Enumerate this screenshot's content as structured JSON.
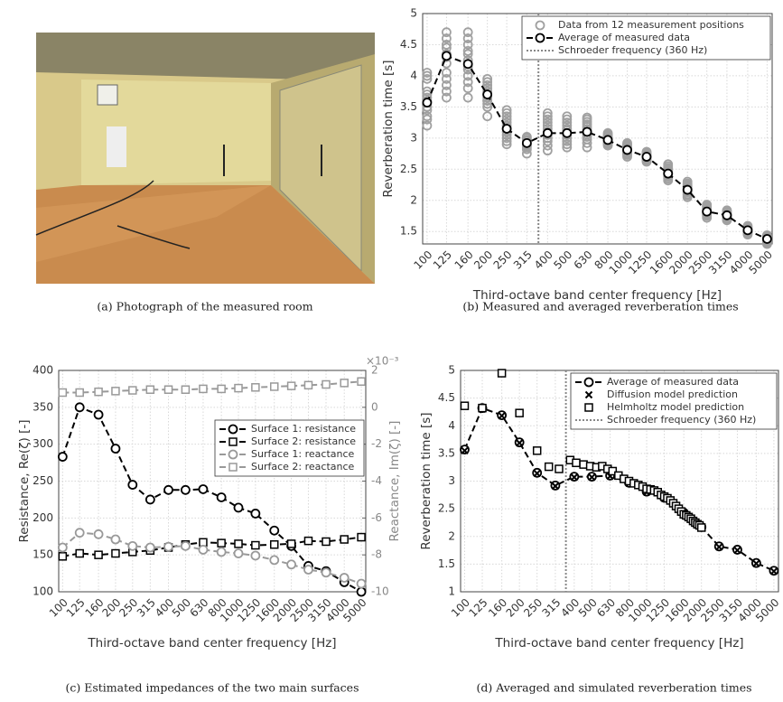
{
  "captions": [
    "(a) Photograph of the measured room",
    "(b) Measured and averaged reverberation times",
    "(c) Estimated impedances of the two main surfaces",
    "(d) Averaged and simulated reverberation times"
  ],
  "chart_data": [
    {
      "type": "scatter-line",
      "xlabel": "Third-octave band center frequency [Hz]",
      "ylabel": "Reverberation time [s]",
      "xscale": "log",
      "grid": true,
      "legend": "upper right",
      "x": [
        100,
        125,
        160,
        200,
        250,
        315,
        400,
        500,
        630,
        800,
        1000,
        1250,
        1600,
        2000,
        2500,
        3150,
        4000,
        5000
      ],
      "xlim": [
        95,
        5300
      ],
      "xticks": [
        100,
        125,
        160,
        200,
        250,
        315,
        400,
        500,
        630,
        800,
        1000,
        1250,
        1600,
        2000,
        2500,
        3150,
        4000,
        5000
      ],
      "ylim": [
        1.3,
        5
      ],
      "yticks": [
        1.5,
        2,
        2.5,
        3,
        3.5,
        4,
        4.5,
        5
      ],
      "vline": {
        "value": 360,
        "label": "Schroeder frequency (360 Hz)",
        "color": "#888888"
      },
      "series": [
        {
          "name": "Data from 12 measurement positions",
          "color": "#a0a0a0",
          "marker": "circle",
          "linestyle": "none",
          "values": [
            [
              3.2,
              3.3,
              3.35,
              3.45,
              3.5,
              3.6,
              3.65,
              3.7,
              3.75,
              3.95,
              4.0,
              4.05
            ],
            [
              3.65,
              3.75,
              3.85,
              3.95,
              4.05,
              4.2,
              4.3,
              4.35,
              4.45,
              4.5,
              4.6,
              4.7
            ],
            [
              3.65,
              3.8,
              3.9,
              4.0,
              4.1,
              4.15,
              4.25,
              4.35,
              4.4,
              4.5,
              4.6,
              4.7
            ],
            [
              3.35,
              3.5,
              3.55,
              3.6,
              3.65,
              3.7,
              3.75,
              3.8,
              3.85,
              3.9,
              3.95,
              3.6
            ],
            [
              2.9,
              2.95,
              3.0,
              3.05,
              3.1,
              3.15,
              3.2,
              3.25,
              3.3,
              3.35,
              3.4,
              3.45
            ],
            [
              2.75,
              2.82,
              2.85,
              2.88,
              2.9,
              2.92,
              2.95,
              2.97,
              3.0,
              3.02,
              2.9,
              2.87
            ],
            [
              2.8,
              2.88,
              2.95,
              3.0,
              3.05,
              3.1,
              3.15,
              3.2,
              3.25,
              3.3,
              3.35,
              3.4
            ],
            [
              2.85,
              2.9,
              2.95,
              3.0,
              3.05,
              3.08,
              3.12,
              3.15,
              3.2,
              3.25,
              3.3,
              3.35
            ],
            [
              2.85,
              2.92,
              2.98,
              3.02,
              3.06,
              3.1,
              3.14,
              3.18,
              3.22,
              3.26,
              3.3,
              3.33
            ],
            [
              2.88,
              2.9,
              2.93,
              2.95,
              2.97,
              3.0,
              3.02,
              3.04,
              3.06,
              2.98,
              2.92,
              3.08
            ],
            [
              2.7,
              2.73,
              2.76,
              2.78,
              2.8,
              2.82,
              2.84,
              2.86,
              2.88,
              2.9,
              2.75,
              2.92
            ],
            [
              2.62,
              2.64,
              2.66,
              2.68,
              2.7,
              2.72,
              2.74,
              2.76,
              2.67,
              2.71,
              2.69,
              2.78
            ],
            [
              2.32,
              2.35,
              2.38,
              2.4,
              2.42,
              2.44,
              2.46,
              2.48,
              2.5,
              2.52,
              2.55,
              2.58
            ],
            [
              2.05,
              2.08,
              2.1,
              2.13,
              2.15,
              2.17,
              2.19,
              2.21,
              2.23,
              2.25,
              2.27,
              2.3
            ],
            [
              1.72,
              1.75,
              1.77,
              1.79,
              1.81,
              1.83,
              1.85,
              1.87,
              1.89,
              1.91,
              1.93,
              1.8
            ],
            [
              1.68,
              1.7,
              1.72,
              1.74,
              1.76,
              1.78,
              1.8,
              1.82,
              1.84,
              1.73,
              1.77,
              1.75
            ],
            [
              1.45,
              1.47,
              1.49,
              1.5,
              1.52,
              1.54,
              1.55,
              1.57,
              1.59,
              1.51,
              1.53,
              1.48
            ],
            [
              1.3,
              1.32,
              1.34,
              1.36,
              1.38,
              1.4,
              1.42,
              1.44,
              1.35,
              1.39,
              1.37,
              1.41
            ]
          ]
        },
        {
          "name": "Average of measured data",
          "color": "#000000",
          "marker": "circle",
          "linestyle": "dashed",
          "values": [
            3.57,
            4.32,
            4.19,
            3.7,
            3.15,
            2.92,
            3.08,
            3.08,
            3.1,
            2.97,
            2.81,
            2.7,
            2.43,
            2.17,
            1.82,
            1.76,
            1.52,
            1.38
          ]
        }
      ]
    },
    {
      "type": "line",
      "xlabel": "Third-octave band center frequency [Hz]",
      "ylabel": "Resistance, Re(ζ) [-]",
      "y2label": "Reactance, Im(ζ) [-]",
      "y2_exponent_label": "×10⁻³",
      "xscale": "log",
      "grid": true,
      "legend": "upper right",
      "x": [
        100,
        125,
        160,
        200,
        250,
        315,
        400,
        500,
        630,
        800,
        1000,
        1250,
        1600,
        2000,
        2500,
        3150,
        4000,
        5000
      ],
      "xlim": [
        95,
        5300
      ],
      "xticks": [
        100,
        125,
        160,
        200,
        250,
        315,
        400,
        500,
        630,
        800,
        1000,
        1250,
        1600,
        2000,
        2500,
        3150,
        4000,
        5000
      ],
      "ylim": [
        100,
        400
      ],
      "yticks": [
        100,
        150,
        200,
        250,
        300,
        350,
        400
      ],
      "y2lim": [
        -10,
        2
      ],
      "y2ticks": [
        -10,
        -8,
        -6,
        -4,
        -2,
        0,
        2
      ],
      "series": [
        {
          "name": "Surface 1: resistance",
          "color": "#000000",
          "marker": "circle",
          "linestyle": "dashed",
          "values": [
            283,
            350,
            340,
            294,
            245,
            225,
            238,
            238,
            239,
            228,
            214,
            206,
            183,
            162,
            135,
            128,
            113,
            100
          ]
        },
        {
          "name": "Surface 2: resistance",
          "color": "#000000",
          "marker": "square",
          "linestyle": "dashed",
          "values": [
            148,
            152,
            150,
            152,
            154,
            156,
            160,
            164,
            167,
            166,
            165,
            163,
            164,
            165,
            169,
            168,
            171,
            174
          ]
        },
        {
          "name": "Surface 1: reactance",
          "color": "#999999",
          "marker": "circle",
          "linestyle": "dashed",
          "axis": "y2",
          "values": [
            -7.6,
            -6.8,
            -6.88,
            -7.16,
            -7.52,
            -7.6,
            -7.56,
            -7.52,
            -7.72,
            -7.84,
            -7.92,
            -8.04,
            -8.28,
            -8.52,
            -8.8,
            -8.96,
            -9.24,
            -9.56
          ]
        },
        {
          "name": "Surface 2: reactance",
          "color": "#999999",
          "marker": "square",
          "linestyle": "dashed",
          "axis": "y2",
          "values": [
            0.8,
            0.8,
            0.84,
            0.88,
            0.92,
            0.96,
            0.96,
            0.96,
            1,
            1,
            1.04,
            1.08,
            1.12,
            1.16,
            1.2,
            1.24,
            1.32,
            1.4
          ]
        }
      ]
    },
    {
      "type": "line",
      "xlabel": "Third-octave band center frequency [Hz]",
      "ylabel": "Reverberation time [s]",
      "xscale": "log",
      "grid": true,
      "legend": "upper right",
      "x": [
        100,
        125,
        160,
        200,
        250,
        315,
        400,
        500,
        630,
        800,
        1000,
        1250,
        1600,
        2000,
        2500,
        3150,
        4000,
        5000
      ],
      "xlim": [
        95,
        5300
      ],
      "xticks": [
        100,
        125,
        160,
        200,
        250,
        315,
        400,
        500,
        630,
        800,
        1000,
        1250,
        1600,
        2000,
        2500,
        3150,
        4000,
        5000
      ],
      "ylim": [
        1,
        5
      ],
      "yticks": [
        1,
        1.5,
        2,
        2.5,
        3,
        3.5,
        4,
        4.5,
        5
      ],
      "vline": {
        "value": 360,
        "label": "Schroeder frequency (360 Hz)",
        "color": "#888888"
      },
      "series": [
        {
          "name": "Average of measured data",
          "color": "#000000",
          "marker": "circle",
          "linestyle": "dashed",
          "values": [
            3.57,
            4.32,
            4.19,
            3.7,
            3.15,
            2.92,
            3.08,
            3.08,
            3.1,
            2.97,
            2.81,
            2.7,
            2.43,
            2.17,
            1.82,
            1.76,
            1.52,
            1.38
          ]
        },
        {
          "name": "Diffusion model prediction",
          "color": "#000000",
          "marker": "x",
          "linestyle": "none",
          "values": [
            3.55,
            4.3,
            4.18,
            3.69,
            3.14,
            2.91,
            3.07,
            3.07,
            3.09,
            2.96,
            2.8,
            2.69,
            2.42,
            2.16,
            1.81,
            1.75,
            1.51,
            1.37
          ]
        },
        {
          "name": "Helmholtz model prediction",
          "color": "#000000",
          "marker": "square",
          "linestyle": "none",
          "x": [
            100,
            125,
            160,
            200,
            250,
            290,
            330,
            380,
            410,
            450,
            490,
            530,
            570,
            610,
            650,
            700,
            750,
            800,
            850,
            900,
            950,
            1000,
            1050,
            1100,
            1150,
            1200,
            1250,
            1300,
            1350,
            1400,
            1450,
            1500,
            1550,
            1600,
            1650,
            1700,
            1750,
            1800,
            1850,
            1900,
            1950,
            2000
          ],
          "values": [
            4.36,
            4.32,
            4.95,
            4.23,
            3.55,
            3.26,
            3.22,
            3.38,
            3.33,
            3.3,
            3.27,
            3.25,
            3.27,
            3.22,
            3.18,
            3.1,
            3.04,
            3.0,
            2.96,
            2.93,
            2.9,
            2.86,
            2.85,
            2.83,
            2.8,
            2.75,
            2.72,
            2.69,
            2.65,
            2.6,
            2.55,
            2.5,
            2.45,
            2.4,
            2.38,
            2.35,
            2.32,
            2.28,
            2.25,
            2.22,
            2.2,
            2.16
          ]
        }
      ]
    }
  ]
}
